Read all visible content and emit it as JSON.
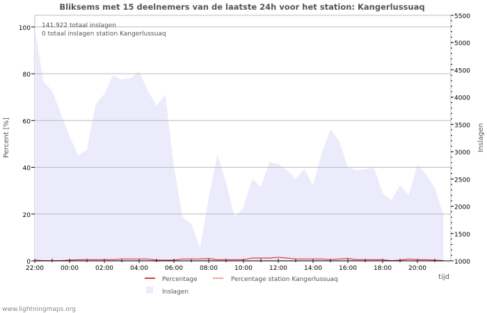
{
  "chart_data": {
    "type": "area",
    "title": "Bliksems met 15 deelnemers van de laatste 24h voor het station: Kangerlussuaq",
    "annotations": [
      "141.922 totaal inslagen",
      "0 totaal inslagen station Kangerlussuaq"
    ],
    "xlabel": "tijd",
    "ylabel": "Percent   [%]",
    "y2label": "Inslagen",
    "ylim": [
      0,
      105
    ],
    "y2lim": [
      1000,
      5500
    ],
    "yticks": [
      0,
      20,
      40,
      60,
      80,
      100
    ],
    "y2ticks": [
      1000,
      1500,
      2000,
      2500,
      3000,
      3500,
      4000,
      4500,
      5000,
      5500
    ],
    "xticklabels": [
      "22:00",
      "00:00",
      "02:00",
      "04:00",
      "06:00",
      "08:00",
      "10:00",
      "12:00",
      "14:00",
      "16:00",
      "18:00",
      "20:00"
    ],
    "x_hours_since_start": [
      0,
      0.5,
      1,
      1.5,
      2,
      2.5,
      3,
      3.5,
      4,
      4.5,
      5,
      5.5,
      6,
      6.5,
      7,
      7.5,
      8,
      8.5,
      9,
      9.5,
      10,
      10.5,
      11,
      11.5,
      12,
      12.5,
      13,
      13.5,
      14,
      14.5,
      15,
      15.5,
      16,
      16.5,
      17,
      17.5,
      18,
      18.5,
      19,
      19.5,
      20,
      20.5,
      21,
      21.5,
      22,
      22.5,
      23,
      23.5
    ],
    "series": [
      {
        "name": "Inslagen",
        "axis": "right",
        "color": "#ebebfc",
        "values": [
          5270,
          4280,
          4120,
          3700,
          3280,
          2930,
          3040,
          3870,
          4060,
          4400,
          4320,
          4350,
          4470,
          4120,
          3840,
          4050,
          2720,
          1790,
          1680,
          1230,
          2150,
          2950,
          2430,
          1800,
          1980,
          2500,
          2360,
          2810,
          2770,
          2660,
          2500,
          2680,
          2380,
          2980,
          3410,
          3190,
          2720,
          2660,
          2680,
          2710,
          2240,
          2110,
          2390,
          2200,
          2770,
          2580,
          2340,
          1830
        ]
      },
      {
        "name": "Percentage",
        "axis": "left",
        "color": "#d9383f",
        "values": [
          0.3,
          0.1,
          0.1,
          0.1,
          0.3,
          0.5,
          0.5,
          0.5,
          0.5,
          0.5,
          0.8,
          0.8,
          0.8,
          0.8,
          0.3,
          0.3,
          0.3,
          0.8,
          0.8,
          0.8,
          1.0,
          0.5,
          0.5,
          0.5,
          0.5,
          1.2,
          1.2,
          1.2,
          1.5,
          1.2,
          0.8,
          0.8,
          0.8,
          0.8,
          0.5,
          0.8,
          1.0,
          0.5,
          0.5,
          0.5,
          0.5,
          0.1,
          0.3,
          0.8,
          0.5,
          0.5,
          0.3,
          0.1
        ]
      },
      {
        "name": "Percentage station Kangerlussuaq",
        "axis": "left",
        "color": "#f4a3a3",
        "values": [
          0,
          0,
          0,
          0,
          0,
          0,
          0,
          0,
          0,
          0,
          0,
          0,
          0,
          0,
          0,
          0,
          0,
          0,
          0,
          0,
          0,
          0,
          0,
          0,
          0,
          0,
          0,
          0,
          0,
          0,
          0,
          0,
          0,
          0,
          0,
          0,
          0,
          0,
          0,
          0,
          0,
          0,
          0,
          0,
          0,
          0,
          0,
          0
        ]
      }
    ],
    "legend": "bottom",
    "grid": true
  },
  "footer": "www.lightningmaps.org"
}
